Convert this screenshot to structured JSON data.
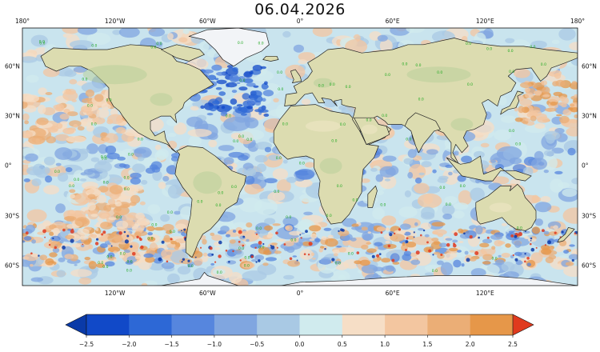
{
  "title": "06.04.2026",
  "map": {
    "top_lon_labels": [
      {
        "text": "180°",
        "lon": -180
      },
      {
        "text": "120°W",
        "lon": -120
      },
      {
        "text": "60°W",
        "lon": -60
      },
      {
        "text": "0°",
        "lon": 0
      },
      {
        "text": "60°E",
        "lon": 60
      },
      {
        "text": "120°E",
        "lon": 120
      },
      {
        "text": "180°",
        "lon": 180
      }
    ],
    "bottom_lon_labels": [
      {
        "text": "120°W",
        "lon": -120
      },
      {
        "text": "60°W",
        "lon": -60
      },
      {
        "text": "0°",
        "lon": 0
      },
      {
        "text": "60°E",
        "lon": 60
      },
      {
        "text": "120°E",
        "lon": 120
      }
    ],
    "lat_labels": [
      {
        "text": "60°N",
        "lat": 60
      },
      {
        "text": "30°N",
        "lat": 30
      },
      {
        "text": "0°",
        "lat": 0
      },
      {
        "text": "30°S",
        "lat": -30
      },
      {
        "text": "60°S",
        "lat": -60
      }
    ],
    "contour_label": "0.0",
    "colors": {
      "ocean_base": "#c9e4ee",
      "land": "#dcdcb0",
      "land_green": "#b9cf9a",
      "ice": "#f2f4f7",
      "coast": "#222222",
      "green_contour": "#22aa22"
    }
  },
  "colorbar": {
    "ticks": [
      "−2.5",
      "−2.0",
      "−1.5",
      "−1.0",
      "−0.5",
      "0.0",
      "0.5",
      "1.0",
      "1.5",
      "2.0",
      "2.5"
    ],
    "colors": [
      "#1149c8",
      "#2d68d6",
      "#5686de",
      "#80a6e0",
      "#a9c9e4",
      "#d0ebee",
      "#f6dec6",
      "#f3c6a0",
      "#ebae76",
      "#e69749"
    ],
    "under_color": "#0a3aa8",
    "over_color": "#e03a1e"
  }
}
